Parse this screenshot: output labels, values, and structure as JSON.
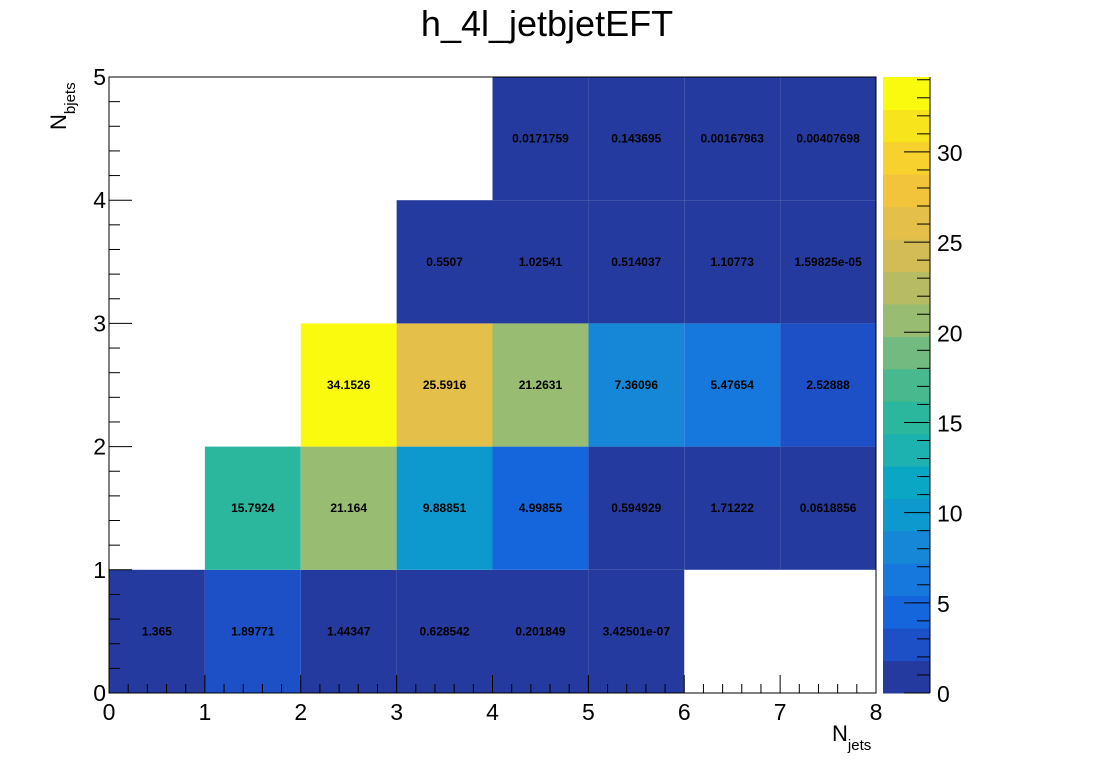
{
  "chart_data": {
    "type": "heatmap",
    "title": "h_4l_jetbjetEFT",
    "xlabel_main": "N",
    "xlabel_sub": "jets",
    "ylabel_main": "N",
    "ylabel_sub": "bjets",
    "xlim": [
      0,
      8
    ],
    "ylim": [
      0,
      5
    ],
    "x_ticks": [
      "0",
      "1",
      "2",
      "3",
      "4",
      "5",
      "6",
      "7",
      "8"
    ],
    "y_ticks": [
      "0",
      "1",
      "2",
      "3",
      "4",
      "5"
    ],
    "z_range": [
      0,
      34.1526
    ],
    "z_ticks": [
      "0",
      "5",
      "10",
      "15",
      "20",
      "25",
      "30"
    ],
    "z_tick_values": [
      0,
      5,
      10,
      15,
      20,
      25,
      30
    ],
    "cells": [
      {
        "x": 0,
        "y": 0,
        "value": 1.365,
        "label": "1.365"
      },
      {
        "x": 1,
        "y": 0,
        "value": 1.89771,
        "label": "1.89771"
      },
      {
        "x": 2,
        "y": 0,
        "value": 1.44347,
        "label": "1.44347"
      },
      {
        "x": 3,
        "y": 0,
        "value": 0.628542,
        "label": "0.628542"
      },
      {
        "x": 4,
        "y": 0,
        "value": 0.201849,
        "label": "0.201849"
      },
      {
        "x": 5,
        "y": 0,
        "value": 3.42501e-07,
        "label": "3.42501e-07"
      },
      {
        "x": 1,
        "y": 1,
        "value": 15.7924,
        "label": "15.7924"
      },
      {
        "x": 2,
        "y": 1,
        "value": 21.164,
        "label": "21.164"
      },
      {
        "x": 3,
        "y": 1,
        "value": 9.88851,
        "label": "9.88851"
      },
      {
        "x": 4,
        "y": 1,
        "value": 4.99855,
        "label": "4.99855"
      },
      {
        "x": 5,
        "y": 1,
        "value": 0.594929,
        "label": "0.594929"
      },
      {
        "x": 6,
        "y": 1,
        "value": 1.71222,
        "label": "1.71222"
      },
      {
        "x": 7,
        "y": 1,
        "value": 0.0618856,
        "label": "0.0618856"
      },
      {
        "x": 2,
        "y": 2,
        "value": 34.1526,
        "label": "34.1526"
      },
      {
        "x": 3,
        "y": 2,
        "value": 25.5916,
        "label": "25.5916"
      },
      {
        "x": 4,
        "y": 2,
        "value": 21.2631,
        "label": "21.2631"
      },
      {
        "x": 5,
        "y": 2,
        "value": 7.36096,
        "label": "7.36096"
      },
      {
        "x": 6,
        "y": 2,
        "value": 5.47654,
        "label": "5.47654"
      },
      {
        "x": 7,
        "y": 2,
        "value": 2.52888,
        "label": "2.52888"
      },
      {
        "x": 3,
        "y": 3,
        "value": 0.5507,
        "label": "0.5507"
      },
      {
        "x": 4,
        "y": 3,
        "value": 1.02541,
        "label": "1.02541"
      },
      {
        "x": 5,
        "y": 3,
        "value": 0.514037,
        "label": "0.514037"
      },
      {
        "x": 6,
        "y": 3,
        "value": 1.10773,
        "label": "1.10773"
      },
      {
        "x": 7,
        "y": 3,
        "value": 1.59825e-05,
        "label": "1.59825e-05"
      },
      {
        "x": 4,
        "y": 4,
        "value": 0.0171759,
        "label": "0.0171759"
      },
      {
        "x": 5,
        "y": 4,
        "value": 0.143695,
        "label": "0.143695"
      },
      {
        "x": 6,
        "y": 4,
        "value": 0.00167963,
        "label": "0.00167963"
      },
      {
        "x": 7,
        "y": 4,
        "value": 0.00407698,
        "label": "0.00407698"
      }
    ],
    "palette": [
      "#253a9e",
      "#1d4fc7",
      "#1565dc",
      "#1677dc",
      "#1587d6",
      "#0e99ce",
      "#0aa7c4",
      "#1db2b0",
      "#2ab79e",
      "#48b98e",
      "#73ba81",
      "#97bc72",
      "#b7bc64",
      "#d3bb55",
      "#e4c04a",
      "#f2c43c",
      "#f7d12e",
      "#f7e41d",
      "#f9fa0d"
    ],
    "grid": false
  }
}
